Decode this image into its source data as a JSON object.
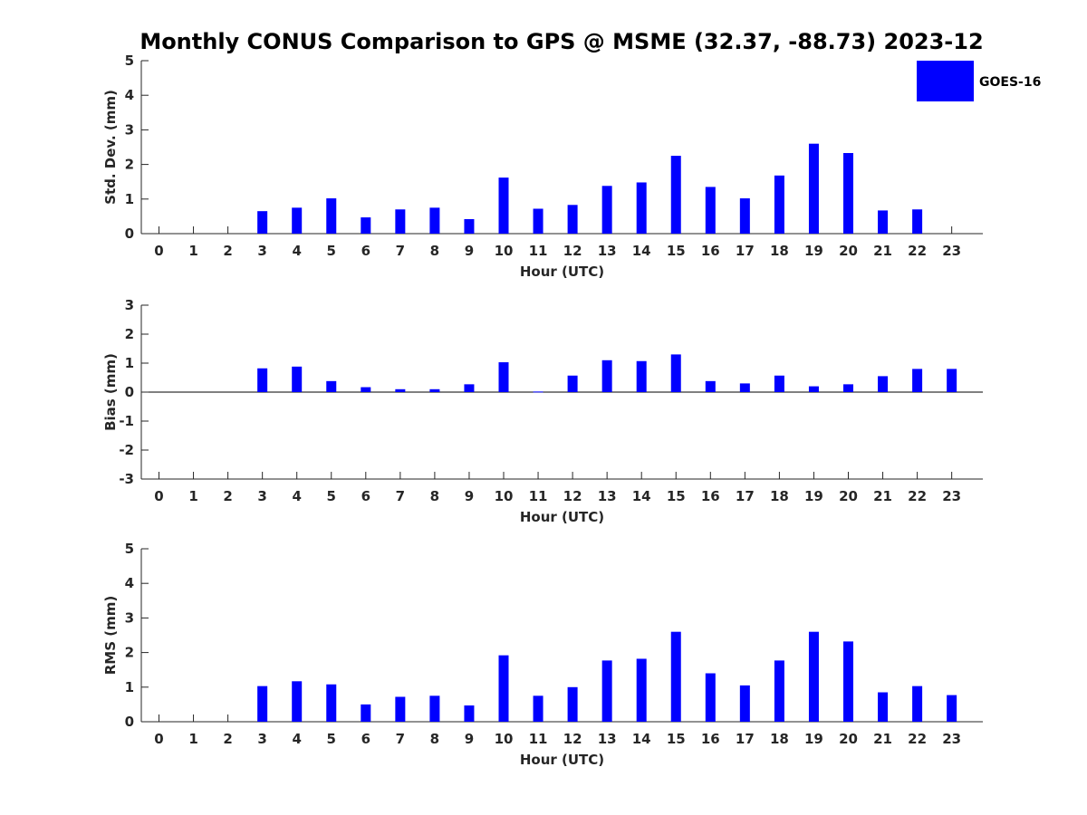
{
  "chart_data": {
    "title": "Monthly CONUS Comparison to GPS @ MSME (32.37, -88.73) 2023-12",
    "bar_color": "#0000ff",
    "legend": [
      {
        "label": "GOES-16",
        "color": "#0000ff",
        "position": "top-right"
      }
    ],
    "panels": [
      {
        "type": "bar",
        "xlabel": "Hour (UTC)",
        "ylabel": "Std. Dev. (mm)",
        "ylim": [
          0,
          5
        ],
        "yticks": [
          "0",
          "1",
          "2",
          "3",
          "4",
          "5"
        ],
        "categories": [
          "0",
          "1",
          "2",
          "3",
          "4",
          "5",
          "6",
          "7",
          "8",
          "9",
          "10",
          "11",
          "12",
          "13",
          "14",
          "15",
          "16",
          "17",
          "18",
          "19",
          "20",
          "21",
          "22",
          "23"
        ],
        "values": [
          0,
          0,
          0,
          0.65,
          0.75,
          1.02,
          0.47,
          0.7,
          0.75,
          0.42,
          1.62,
          0.72,
          0.83,
          1.38,
          1.48,
          2.25,
          1.35,
          1.02,
          1.68,
          2.6,
          2.33,
          0.67,
          0.7,
          0
        ]
      },
      {
        "type": "bar",
        "xlabel": "Hour (UTC)",
        "ylabel": "Bias (mm)",
        "ylim": [
          -3,
          3
        ],
        "yticks": [
          "-3",
          "-2",
          "-1",
          "0",
          "1",
          "2",
          "3"
        ],
        "categories": [
          "0",
          "1",
          "2",
          "3",
          "4",
          "5",
          "6",
          "7",
          "8",
          "9",
          "10",
          "11",
          "12",
          "13",
          "14",
          "15",
          "16",
          "17",
          "18",
          "19",
          "20",
          "21",
          "22",
          "23"
        ],
        "values": [
          0,
          0,
          0,
          0.82,
          0.88,
          0.38,
          0.17,
          0.1,
          0.1,
          0.27,
          1.03,
          0.02,
          0.57,
          1.1,
          1.07,
          1.3,
          0.38,
          0.3,
          0.57,
          0.2,
          0.27,
          0.55,
          0.8,
          0.8
        ]
      },
      {
        "type": "bar",
        "xlabel": "Hour (UTC)",
        "ylabel": "RMS (mm)",
        "ylim": [
          0,
          5
        ],
        "yticks": [
          "0",
          "1",
          "2",
          "3",
          "4",
          "5"
        ],
        "categories": [
          "0",
          "1",
          "2",
          "3",
          "4",
          "5",
          "6",
          "7",
          "8",
          "9",
          "10",
          "11",
          "12",
          "13",
          "14",
          "15",
          "16",
          "17",
          "18",
          "19",
          "20",
          "21",
          "22",
          "23"
        ],
        "values": [
          0,
          0,
          0,
          1.03,
          1.17,
          1.08,
          0.5,
          0.72,
          0.75,
          0.47,
          1.92,
          0.75,
          1.0,
          1.77,
          1.82,
          2.6,
          1.4,
          1.05,
          1.77,
          2.6,
          2.32,
          0.85,
          1.03,
          0.77
        ]
      }
    ]
  }
}
